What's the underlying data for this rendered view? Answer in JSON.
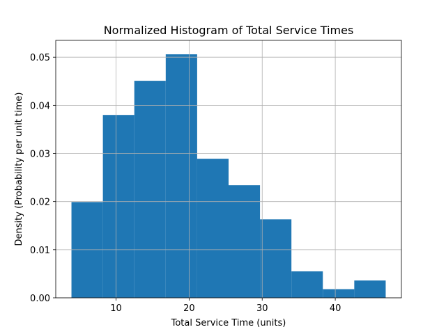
{
  "chart_data": {
    "type": "bar",
    "title": "Normalized Histogram of Total Service Times",
    "xlabel": "Total Service Time (units)",
    "ylabel": "Density (Probability per unit time)",
    "bins": [
      {
        "x0": 3.9,
        "x1": 8.2,
        "value": 0.0199
      },
      {
        "x0": 8.2,
        "x1": 12.5,
        "value": 0.038
      },
      {
        "x0": 12.5,
        "x1": 16.8,
        "value": 0.0451
      },
      {
        "x0": 16.8,
        "x1": 21.1,
        "value": 0.0506
      },
      {
        "x0": 21.1,
        "x1": 25.4,
        "value": 0.0289
      },
      {
        "x0": 25.4,
        "x1": 29.7,
        "value": 0.0234
      },
      {
        "x0": 29.7,
        "x1": 34.0,
        "value": 0.0163
      },
      {
        "x0": 34.0,
        "x1": 38.3,
        "value": 0.0055
      },
      {
        "x0": 38.3,
        "x1": 42.6,
        "value": 0.0018
      },
      {
        "x0": 42.6,
        "x1": 46.9,
        "value": 0.0036
      }
    ],
    "xlim": [
      1.75,
      49.05
    ],
    "ylim": [
      0,
      0.0535
    ],
    "xticks": [
      10,
      20,
      30,
      40
    ],
    "xtick_labels": [
      "10",
      "20",
      "30",
      "40"
    ],
    "yticks": [
      0,
      0.01,
      0.02,
      0.03,
      0.04,
      0.05
    ],
    "ytick_labels": [
      "0.00",
      "0.01",
      "0.02",
      "0.03",
      "0.04",
      "0.05"
    ],
    "grid": true,
    "colors": {
      "bar": "#1f77b4",
      "grid": "#b0b0b0",
      "axis": "#000000"
    }
  }
}
